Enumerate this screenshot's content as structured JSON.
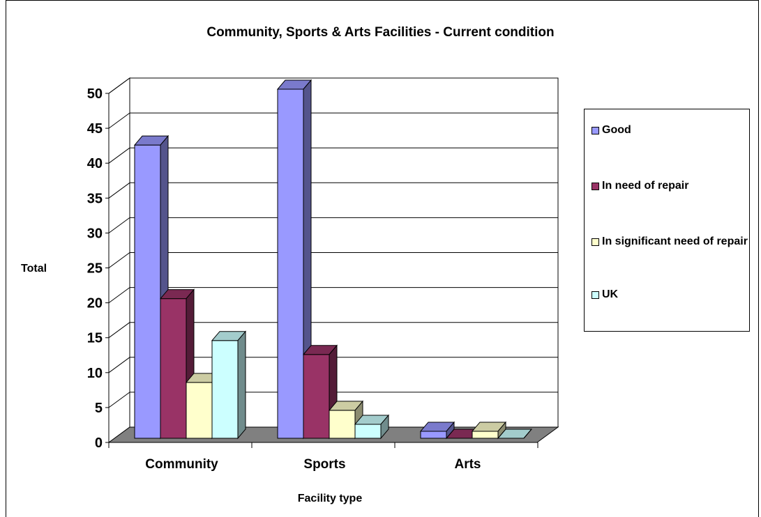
{
  "chart_data": {
    "type": "bar",
    "title": "Community, Sports & Arts Facilities - Current condition",
    "xlabel": "Facility type",
    "ylabel": "Total",
    "categories": [
      "Community",
      "Sports",
      "Arts"
    ],
    "series": [
      {
        "name": "Good",
        "values": [
          42,
          50,
          1
        ],
        "color": "#9999ff"
      },
      {
        "name": "In need of repair",
        "values": [
          20,
          12,
          0
        ],
        "color": "#993366"
      },
      {
        "name": "In significant need of repair",
        "values": [
          8,
          4,
          1
        ],
        "color": "#ffffcc"
      },
      {
        "name": "UK",
        "values": [
          14,
          2,
          0
        ],
        "color": "#ccffff"
      }
    ],
    "yticks": [
      "0",
      "5",
      "10",
      "15",
      "20",
      "25",
      "30",
      "35",
      "40",
      "45",
      "50"
    ],
    "ylim": [
      0,
      50
    ],
    "grid": true,
    "legend_position": "right",
    "style": "3d-clustered-column",
    "floor_color": "#808080"
  }
}
